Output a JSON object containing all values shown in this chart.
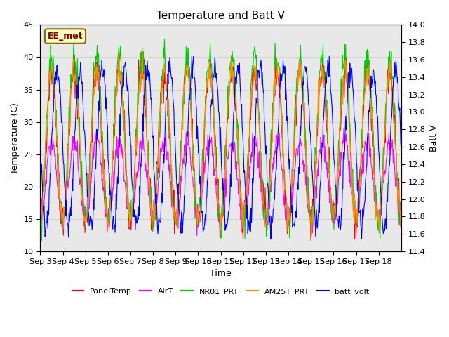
{
  "title": "Temperature and Batt V",
  "xlabel": "Time",
  "ylabel_left": "Temperature (C)",
  "ylabel_right": "Batt V",
  "ylim_left": [
    10,
    45
  ],
  "ylim_right": [
    11.4,
    14.0
  ],
  "annotation": "EE_met",
  "annotation_color": "#8B0000",
  "annotation_bg": "#FFFFC0",
  "annotation_border": "#8B6914",
  "x_tick_labels": [
    "Sep 3",
    "Sep 4",
    "Sep 5",
    "Sep 6",
    "Sep 7",
    "Sep 8",
    "Sep 9",
    "Sep 10",
    "Sep 11",
    "Sep 12",
    "Sep 13",
    "Sep 14",
    "Sep 15",
    "Sep 16",
    "Sep 17",
    "Sep 18"
  ],
  "series_colors": {
    "PanelTemp": "#FF0000",
    "AirT": "#FF00FF",
    "NR01_PRT": "#00CC00",
    "AM25T_PRT": "#FF8C00",
    "batt_volt": "#0000FF"
  },
  "legend_labels": [
    "PanelTemp",
    "AirT",
    "NR01_PRT",
    "AM25T_PRT",
    "batt_volt"
  ],
  "grid_color": "#CCCCCC",
  "plot_bg": "#E8E8E8",
  "n_days": 16,
  "pts_per_day": 48
}
